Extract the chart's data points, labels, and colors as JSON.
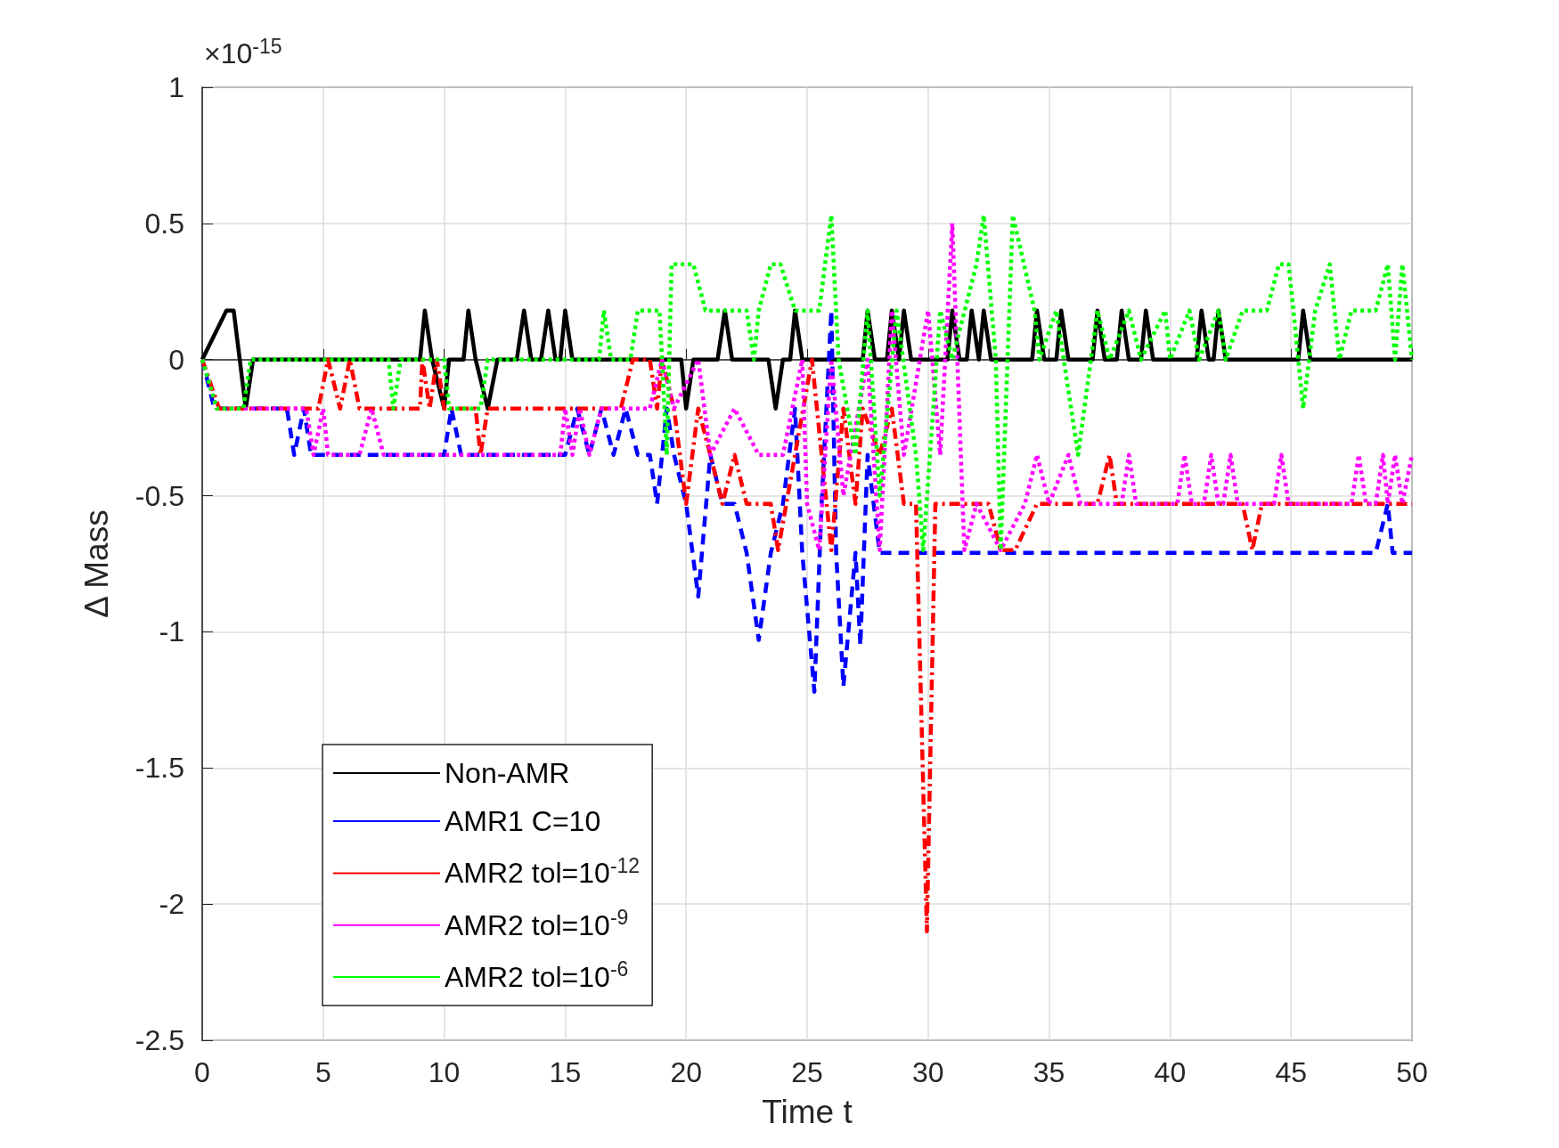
{
  "chart_data": {
    "type": "line",
    "xlabel": "Time t",
    "ylabel": "Δ Mass",
    "annotations": [
      "×10$^{-15}$"
    ],
    "xlim": [
      0,
      50
    ],
    "xticks": [
      0,
      5,
      10,
      15,
      20,
      25,
      30,
      35,
      40,
      45,
      50
    ],
    "ylim": [
      -2.5,
      1
    ],
    "yticks": [
      -2.5,
      -2,
      -1.5,
      -1,
      -0.5,
      0,
      0.5,
      1
    ],
    "grid": true,
    "legend": "bottom left",
    "marker": "none",
    "series": [
      {
        "name": "Non-AMR",
        "color": "#000000",
        "line_style": "solid",
        "x": [
          0,
          1.0,
          1.3,
          1.8,
          2.1,
          9.0,
          9.2,
          9.5,
          10.0,
          10.2,
          10.8,
          11.0,
          11.3,
          11.8,
          12.2,
          13.0,
          13.3,
          13.6,
          14.0,
          14.3,
          14.6,
          14.8,
          15.0,
          15.3,
          19.8,
          20.0,
          20.3,
          21.3,
          21.6,
          21.9,
          23.4,
          23.7,
          24.0,
          24.3,
          24.5,
          24.8,
          27.3,
          27.5,
          27.8,
          28.3,
          28.5,
          28.8,
          29.0,
          29.3,
          30.8,
          31.0,
          31.3,
          31.6,
          31.8,
          32.1,
          32.3,
          32.6,
          34.3,
          34.5,
          34.8,
          35.3,
          35.5,
          35.8,
          36.8,
          37.0,
          37.3,
          37.8,
          38.0,
          38.3,
          38.8,
          39.0,
          39.3,
          41.1,
          41.3,
          41.6,
          41.8,
          42.0,
          42.3,
          45.3,
          45.5,
          45.8,
          50
        ],
        "values": [
          0,
          0.18,
          0.18,
          -0.18,
          0,
          0,
          0.18,
          0,
          -0.18,
          0,
          0,
          0.18,
          0,
          -0.18,
          0,
          0,
          0.18,
          0,
          0,
          0.18,
          0,
          0,
          0.18,
          0,
          0,
          -0.18,
          0,
          0,
          0.18,
          0,
          0,
          -0.18,
          0,
          0,
          0.18,
          0,
          0,
          0.18,
          0,
          0,
          0.18,
          0,
          0.18,
          0,
          0,
          0.18,
          0,
          0,
          0.18,
          0,
          0.18,
          0,
          0,
          0.18,
          0,
          0,
          0.18,
          0,
          0,
          0.18,
          0,
          0,
          0.18,
          0,
          0,
          0.18,
          0,
          0,
          0.18,
          0,
          0,
          0.18,
          0,
          0,
          0.18,
          0,
          0
        ]
      },
      {
        "name": "AMR1 C=10",
        "color": "#0000ff",
        "line_style": "dashed",
        "x": [
          0,
          0.5,
          3.5,
          3.8,
          4.2,
          4.5,
          10.0,
          10.3,
          10.7,
          15.0,
          15.5,
          16.0,
          16.5,
          17.0,
          17.5,
          18.0,
          18.5,
          18.8,
          19.2,
          19.5,
          20.0,
          20.5,
          21.0,
          21.5,
          22.0,
          22.5,
          23.0,
          23.5,
          24.0,
          24.5,
          24.8,
          25.3,
          25.6,
          26.0,
          26.2,
          26.5,
          27.0,
          27.2,
          27.5,
          28.0,
          48.5,
          49.0,
          49.2,
          50
        ],
        "values": [
          0,
          -0.18,
          -0.18,
          -0.35,
          -0.18,
          -0.35,
          -0.35,
          -0.18,
          -0.35,
          -0.35,
          -0.18,
          -0.35,
          -0.18,
          -0.35,
          -0.18,
          -0.35,
          -0.35,
          -0.53,
          -0.18,
          -0.35,
          -0.53,
          -0.87,
          -0.35,
          -0.53,
          -0.53,
          -0.71,
          -1.03,
          -0.71,
          -0.53,
          -0.18,
          -0.71,
          -1.22,
          -0.53,
          0.18,
          -0.71,
          -1.2,
          -0.71,
          -1.05,
          -0.35,
          -0.71,
          -0.71,
          -0.53,
          -0.71,
          -0.71
        ]
      },
      {
        "name": "AMR2 tol=10$^{-12}$",
        "color": "#ff0000",
        "line_style": "dashdot",
        "x": [
          0,
          0.7,
          4.8,
          5.2,
          5.7,
          6.1,
          6.5,
          9.0,
          9.1,
          9.4,
          9.7,
          10.0,
          11.3,
          11.5,
          11.8,
          17.3,
          17.8,
          18.5,
          18.8,
          19.0,
          19.5,
          20.0,
          20.5,
          21.0,
          21.5,
          22.0,
          22.5,
          23.5,
          23.8,
          24.5,
          25.2,
          25.6,
          26.0,
          26.5,
          27.0,
          27.3,
          28.0,
          28.5,
          29.0,
          29.5,
          29.95,
          30.3,
          32.5,
          33.0,
          33.6,
          34.5,
          37.0,
          37.5,
          37.8,
          43.0,
          43.4,
          43.8,
          50
        ],
        "values": [
          0,
          -0.18,
          -0.18,
          0,
          -0.18,
          0,
          -0.18,
          -0.18,
          0,
          -0.18,
          0,
          -0.18,
          -0.18,
          -0.35,
          -0.18,
          -0.18,
          0,
          0,
          -0.18,
          0,
          -0.18,
          -0.53,
          -0.18,
          -0.35,
          -0.53,
          -0.35,
          -0.53,
          -0.53,
          -0.7,
          -0.35,
          0,
          -0.35,
          -0.7,
          -0.18,
          -0.53,
          -0.18,
          -0.35,
          -0.18,
          -0.53,
          -0.53,
          -2.1,
          -0.53,
          -0.53,
          -0.7,
          -0.7,
          -0.53,
          -0.53,
          -0.35,
          -0.53,
          -0.53,
          -0.7,
          -0.53,
          -0.53
        ]
      },
      {
        "name": "AMR2 tol=10$^{-9}$",
        "color": "#ff00ff",
        "line_style": "dotted",
        "x": [
          0,
          0.6,
          4.3,
          4.6,
          5.0,
          5.2,
          6.5,
          7.0,
          7.5,
          14.8,
          15.0,
          15.3,
          15.6,
          16.0,
          16.5,
          18.5,
          19.0,
          19.5,
          20.5,
          21.0,
          22.0,
          23.0,
          24.0,
          24.8,
          25.0,
          25.5,
          26.0,
          26.5,
          27.5,
          28.0,
          28.5,
          29.0,
          30.0,
          30.5,
          31.0,
          31.5,
          32.0,
          33.0,
          34.0,
          34.5,
          35.0,
          35.8,
          36.3,
          38.0,
          38.3,
          38.6,
          40.3,
          40.6,
          40.9,
          41.4,
          41.7,
          42.0,
          42.2,
          42.5,
          42.8,
          44.3,
          44.6,
          44.9,
          47.5,
          47.8,
          48.1,
          48.5,
          48.8,
          49.0,
          49.3,
          49.6,
          50
        ],
        "values": [
          0,
          -0.18,
          -0.18,
          -0.35,
          -0.18,
          -0.35,
          -0.35,
          -0.18,
          -0.35,
          -0.35,
          -0.18,
          -0.35,
          -0.18,
          -0.35,
          -0.18,
          -0.18,
          0,
          -0.18,
          0,
          -0.35,
          -0.18,
          -0.35,
          -0.35,
          0,
          -0.53,
          -0.7,
          0,
          -0.5,
          0,
          -0.7,
          0.18,
          -0.35,
          0.18,
          -0.35,
          0.5,
          -0.7,
          -0.53,
          -0.7,
          -0.53,
          -0.35,
          -0.53,
          -0.35,
          -0.53,
          -0.53,
          -0.35,
          -0.53,
          -0.53,
          -0.35,
          -0.53,
          -0.53,
          -0.35,
          -0.53,
          -0.53,
          -0.35,
          -0.53,
          -0.53,
          -0.35,
          -0.53,
          -0.53,
          -0.35,
          -0.53,
          -0.53,
          -0.35,
          -0.53,
          -0.35,
          -0.53,
          -0.35
        ]
      },
      {
        "name": "AMR2 tol=10$^{-6}$",
        "color": "#00ff00",
        "line_style": "dotted",
        "x": [
          0,
          0.6,
          1.7,
          2.0,
          7.7,
          7.9,
          8.2,
          10.0,
          10.2,
          11.5,
          11.8,
          16.4,
          16.6,
          16.9,
          17.7,
          18.0,
          18.9,
          19.2,
          19.4,
          20.3,
          20.8,
          22.5,
          22.8,
          23.0,
          23.5,
          23.9,
          24.5,
          25.5,
          26.0,
          26.3,
          27.0,
          27.5,
          28.0,
          28.7,
          29.5,
          29.8,
          30.5,
          31.0,
          32.0,
          32.3,
          32.8,
          33.0,
          33.5,
          34.4,
          34.6,
          35.3,
          36.2,
          37.0,
          37.5,
          38.3,
          38.8,
          39.8,
          40.0,
          40.8,
          41.2,
          42.0,
          42.3,
          43.0,
          44.0,
          44.5,
          44.9,
          45.1,
          45.5,
          46.0,
          46.6,
          47.0,
          47.5,
          48.5,
          49.0,
          49.3,
          49.6,
          50
        ],
        "values": [
          0,
          -0.18,
          -0.18,
          0,
          0,
          -0.18,
          0,
          0,
          -0.18,
          -0.18,
          0,
          0,
          0.18,
          0,
          0,
          0.18,
          0.18,
          -0.35,
          0.35,
          0.35,
          0.18,
          0.18,
          0,
          0.18,
          0.35,
          0.35,
          0.18,
          0.18,
          0.53,
          0,
          -0.35,
          0.18,
          -0.5,
          0.18,
          -0.35,
          -0.7,
          0.18,
          0,
          0.35,
          0.53,
          0,
          -0.7,
          0.53,
          0.18,
          0,
          0.18,
          -0.35,
          0.18,
          0,
          0.18,
          0,
          0.18,
          0,
          0.18,
          0,
          0.18,
          0,
          0.18,
          0.18,
          0.35,
          0.35,
          0.18,
          -0.18,
          0.18,
          0.35,
          0,
          0.18,
          0.18,
          0.35,
          0,
          0.35,
          0
        ]
      }
    ]
  }
}
